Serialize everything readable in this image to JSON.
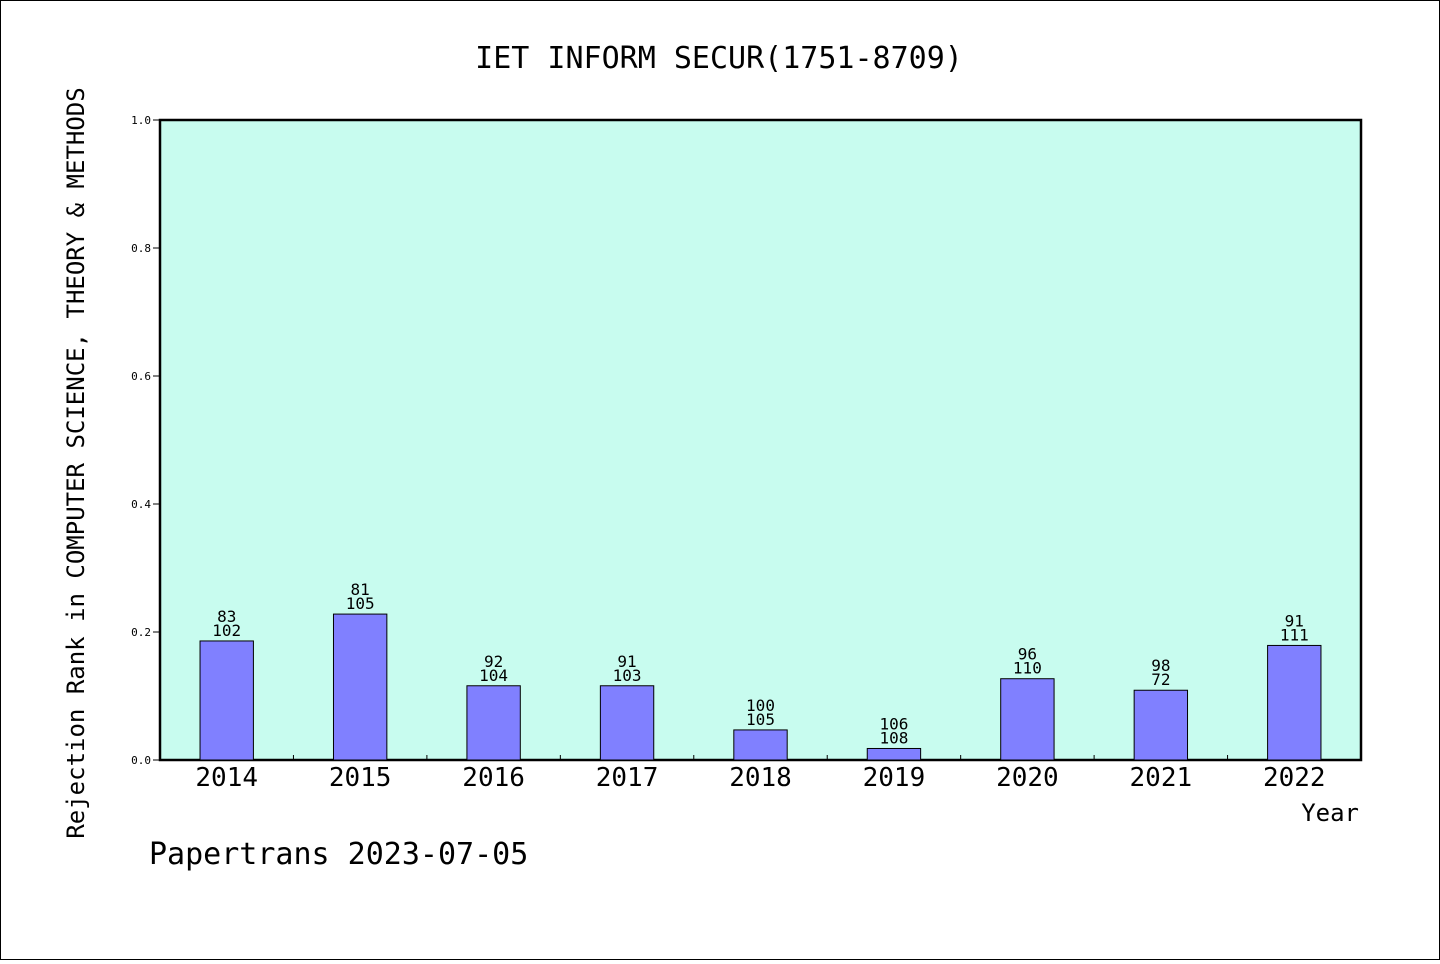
{
  "chart_data": {
    "type": "bar",
    "title": "IET INFORM SECUR(1751-8709)",
    "xlabel": "Year",
    "ylabel": "Rejection Rank in COMPUTER SCIENCE, THEORY & METHODS",
    "categories": [
      "2014",
      "2015",
      "2016",
      "2017",
      "2018",
      "2019",
      "2020",
      "2021",
      "2022"
    ],
    "values": [
      0.186,
      0.228,
      0.116,
      0.116,
      0.047,
      0.018,
      0.127,
      0.109,
      0.179
    ],
    "bar_labels_top": [
      "83",
      "81",
      "92",
      "91",
      "100",
      "106",
      "96",
      "98",
      "91"
    ],
    "bar_labels_bottom": [
      "102",
      "105",
      "104",
      "103",
      "105",
      "108",
      "110",
      "72",
      "111"
    ],
    "ylim": [
      0,
      1.0
    ],
    "yticks": [
      "0.0",
      "0.2",
      "0.4",
      "0.6",
      "0.8",
      "1.0"
    ],
    "grid": false,
    "plot_background": "#c8fcef",
    "bar_color": "#8080ff"
  },
  "footer": {
    "text": "Papertrans 2023-07-05"
  }
}
